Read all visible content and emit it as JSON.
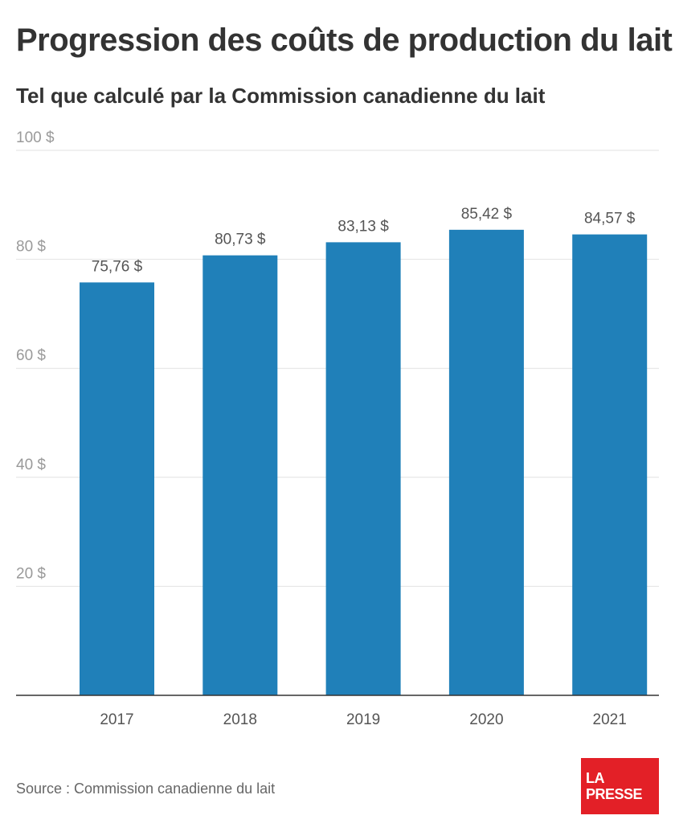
{
  "chart_data": {
    "type": "bar",
    "title": "Progression des coûts de production du lait",
    "subtitle": "Tel que calculé par la Commission canadienne du lait",
    "categories": [
      "2017",
      "2018",
      "2019",
      "2020",
      "2021"
    ],
    "values": [
      75.76,
      80.73,
      83.13,
      85.42,
      84.57
    ],
    "value_labels": [
      "75,76 $",
      "80,73 $",
      "83,13 $",
      "85,42 $",
      "84,57 $"
    ],
    "ylim": [
      0,
      100
    ],
    "yticks": [
      20,
      40,
      60,
      80,
      100
    ],
    "ytick_labels": [
      "20 $",
      "40 $",
      "60 $",
      "80 $",
      "100 $"
    ],
    "grid": true,
    "bar_color": "#2080b9"
  },
  "source": "Source : Commission canadienne du lait",
  "logo": {
    "line1": "LA",
    "line2": "PRESSE",
    "color": "#e32027"
  }
}
